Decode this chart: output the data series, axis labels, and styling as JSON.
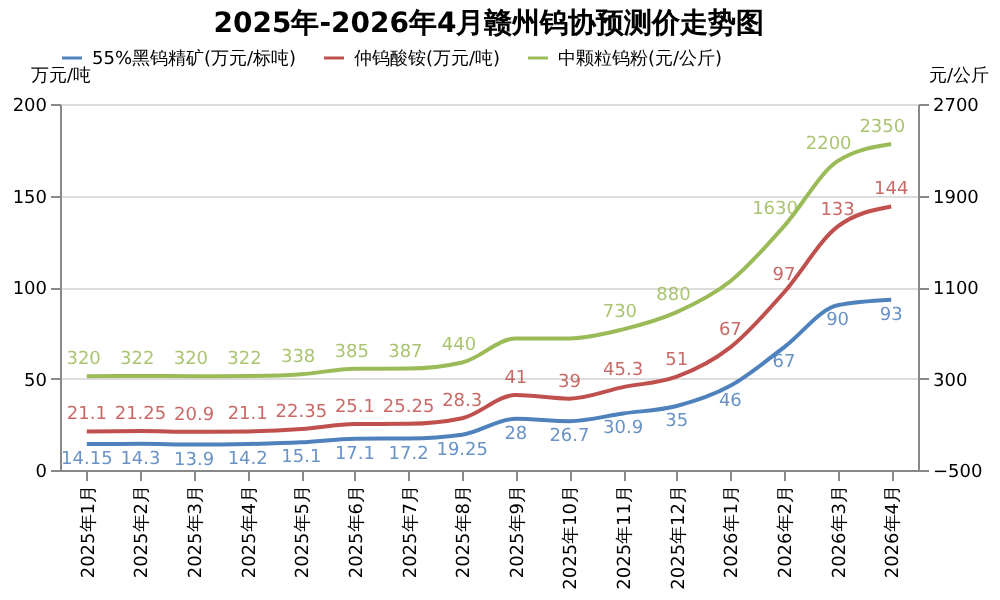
{
  "chart_data": {
    "type": "line",
    "title": "2025年-2026年4月赣州钨协预测价走势图",
    "categories": [
      "2025年1月",
      "2025年2月",
      "2025年3月",
      "2025年4月",
      "2025年5月",
      "2025年6月",
      "2025年7月",
      "2025年8月",
      "2025年9月",
      "2025年10月",
      "2025年11月",
      "2025年12月",
      "2026年1月",
      "2026年2月",
      "2026年3月",
      "2026年4月"
    ],
    "series": [
      {
        "name": "55%黑钨精矿(万元/标吨)",
        "color": "#4f81bd",
        "values": [
          14.15,
          14.3,
          13.9,
          14.2,
          15.1,
          17.1,
          17.2,
          19.25,
          28,
          26.7,
          30.9,
          35,
          46,
          67,
          90,
          93
        ],
        "value_labels": [
          "14.15",
          "14.3",
          "13.9",
          "14.2",
          "15.1",
          "17.1",
          "17.2",
          "19.25",
          "28",
          "26.7",
          "30.9",
          "35",
          "46",
          "67",
          "90",
          "93"
        ]
      },
      {
        "name": "仲钨酸铵(万元/吨)",
        "color": "#c0504d",
        "values": [
          21.1,
          21.25,
          20.9,
          21.1,
          22.35,
          25.1,
          25.25,
          28.3,
          41,
          39,
          45.3,
          51,
          67,
          97,
          133,
          144
        ],
        "value_labels": [
          "21.1",
          "21.25",
          "20.9",
          "21.1",
          "22.35",
          "25.1",
          "25.25",
          "28.3",
          "41",
          "39",
          "45.3",
          "51",
          "67",
          "97",
          "133",
          "144"
        ]
      },
      {
        "name": "中颗粒钨粉(元/公斤)",
        "color": "#9bbb59",
        "axis": "y2",
        "values": [
          320,
          322,
          320,
          322,
          338,
          385,
          387,
          440,
          650,
          650,
          730,
          880,
          1150,
          1630,
          2200,
          2350
        ],
        "value_labels": [
          "320",
          "322",
          "320",
          "322",
          "338",
          "385",
          "387",
          "440",
          null,
          null,
          "730",
          "880",
          null,
          "1630",
          "2200",
          "2350"
        ]
      }
    ],
    "ylabel": "万元/吨",
    "y2label": "元/公斤",
    "ylim": [
      0,
      200
    ],
    "yticks": [
      0,
      50,
      100,
      150,
      200
    ],
    "y2lim": [
      -500,
      2700
    ],
    "y2ticks": [
      -500,
      300,
      1100,
      1900,
      2700
    ],
    "grid": "y",
    "legend": "top",
    "marker": "none",
    "line_style": "solid"
  }
}
